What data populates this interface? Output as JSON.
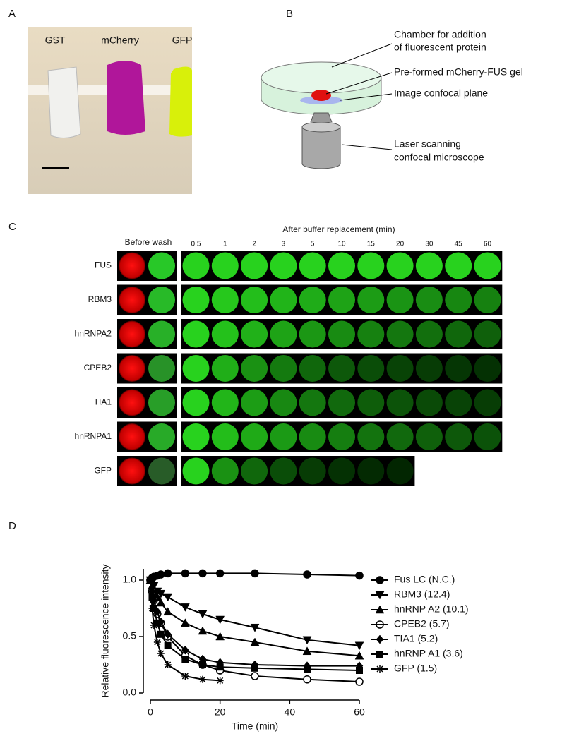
{
  "panel_a": {
    "letter": "A",
    "labels": [
      "GST",
      "mCherry",
      "GFP"
    ]
  },
  "panel_b": {
    "letter": "B",
    "labels": [
      "Chamber for addition",
      "of fluorescent protein",
      "Pre-formed mCherry-FUS gel",
      "Image confocal plane",
      "Laser scanning",
      "confocal microscope"
    ]
  },
  "panel_c": {
    "letter": "C",
    "before_label": "Before wash",
    "after_label": "After buffer replacement (min)",
    "times": [
      "0.5",
      "1",
      "2",
      "3",
      "5",
      "10",
      "15",
      "20",
      "30",
      "45",
      "60"
    ],
    "rows": [
      "FUS",
      "RBM3",
      "hnRNPA2",
      "CPEB2",
      "TIA1",
      "hnRNPA1",
      "GFP"
    ]
  },
  "panel_d": {
    "letter": "D"
  },
  "chart_data": {
    "type": "scatter",
    "x_label": "Time (min)",
    "y_label": "Relative fluorescence intensity",
    "xlim": [
      0,
      60
    ],
    "xticks": [
      0,
      20,
      40,
      60
    ],
    "ylim": [
      0,
      1.1
    ],
    "yticks": [
      {
        "value": 0,
        "label": "0.0"
      },
      {
        "value": 0.5,
        "label": "0.5"
      },
      {
        "value": 1,
        "label": "1.0"
      }
    ],
    "series": [
      {
        "name": "Fus LC (N.C.)",
        "marker": "circle",
        "color": "#000000",
        "x": [
          0,
          0.5,
          1,
          2,
          3,
          5,
          10,
          15,
          20,
          30,
          45,
          60
        ],
        "values": [
          1.0,
          1.02,
          1.03,
          1.04,
          1.05,
          1.06,
          1.06,
          1.06,
          1.06,
          1.06,
          1.05,
          1.04
        ]
      },
      {
        "name": "RBM3 (12.4)",
        "marker": "triangle-down",
        "color": "#000000",
        "x": [
          0,
          0.5,
          1,
          2,
          3,
          5,
          10,
          15,
          20,
          30,
          45,
          60
        ],
        "values": [
          1.0,
          0.98,
          0.95,
          0.9,
          0.88,
          0.85,
          0.76,
          0.7,
          0.65,
          0.58,
          0.47,
          0.42
        ]
      },
      {
        "name": "hnRNP A2 (10.1)",
        "marker": "triangle-up",
        "color": "#000000",
        "x": [
          0,
          0.5,
          1,
          2,
          3,
          5,
          10,
          15,
          20,
          30,
          45,
          60
        ],
        "values": [
          1.0,
          0.95,
          0.9,
          0.85,
          0.8,
          0.72,
          0.62,
          0.55,
          0.5,
          0.45,
          0.37,
          0.33
        ]
      },
      {
        "name": "CPEB2 (5.7)",
        "marker": "open-circle",
        "color": "#000000",
        "x": [
          0,
          0.5,
          1,
          2,
          3,
          5,
          10,
          15,
          20,
          30,
          45,
          60
        ],
        "values": [
          1.0,
          0.9,
          0.82,
          0.7,
          0.62,
          0.5,
          0.33,
          0.25,
          0.2,
          0.15,
          0.12,
          0.1
        ]
      },
      {
        "name": "TIA1 (5.2)",
        "marker": "diamond",
        "color": "#000000",
        "x": [
          0,
          0.5,
          1,
          2,
          3,
          5,
          10,
          15,
          20,
          30,
          45,
          60
        ],
        "values": [
          1.0,
          0.9,
          0.82,
          0.72,
          0.63,
          0.52,
          0.38,
          0.3,
          0.27,
          0.25,
          0.24,
          0.24
        ]
      },
      {
        "name": "hnRNP A1 (3.6)",
        "marker": "square",
        "color": "#000000",
        "x": [
          0,
          0.5,
          1,
          2,
          3,
          5,
          10,
          15,
          20,
          30,
          45,
          60
        ],
        "values": [
          1.0,
          0.85,
          0.75,
          0.62,
          0.52,
          0.42,
          0.3,
          0.25,
          0.23,
          0.22,
          0.21,
          0.2
        ]
      },
      {
        "name": "GFP (1.5)",
        "marker": "asterisk",
        "color": "#000000",
        "x": [
          0,
          0.5,
          1,
          2,
          3,
          5,
          10,
          15,
          20
        ],
        "values": [
          1.0,
          0.75,
          0.6,
          0.45,
          0.35,
          0.25,
          0.15,
          0.12,
          0.11
        ]
      }
    ]
  }
}
